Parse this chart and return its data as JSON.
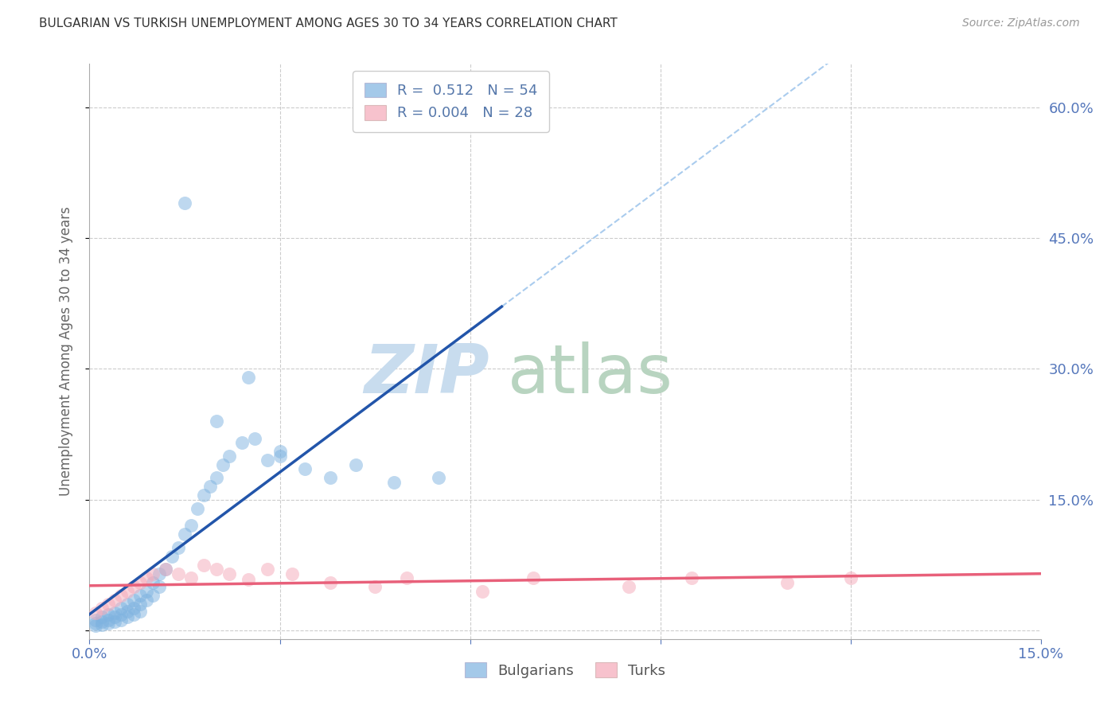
{
  "title": "BULGARIAN VS TURKISH UNEMPLOYMENT AMONG AGES 30 TO 34 YEARS CORRELATION CHART",
  "source": "Source: ZipAtlas.com",
  "ylabel_label": "Unemployment Among Ages 30 to 34 years",
  "xlim": [
    0.0,
    0.15
  ],
  "ylim": [
    -0.01,
    0.65
  ],
  "x_ticks": [
    0.0,
    0.03,
    0.06,
    0.09,
    0.12,
    0.15
  ],
  "x_tick_labels": [
    "0.0%",
    "",
    "",
    "",
    "",
    "15.0%"
  ],
  "y_ticks_right": [
    0.0,
    0.15,
    0.3,
    0.45,
    0.6
  ],
  "y_tick_labels_right": [
    "",
    "15.0%",
    "30.0%",
    "45.0%",
    "60.0%"
  ],
  "bulgarian_R": "0.512",
  "bulgarian_N": "54",
  "turkish_R": "0.004",
  "turkish_N": "28",
  "bulgarian_color": "#7EB3E0",
  "turkish_color": "#F4A8B8",
  "bulgarian_line_color": "#2255AA",
  "turkish_line_color": "#E8607A",
  "dashed_line_color": "#AACCEE",
  "legend_text_color": "#5577AA",
  "title_color": "#333333",
  "axis_color": "#5577BB",
  "watermark_zip_color": "#C8DCEE",
  "watermark_atlas_color": "#B8D4C0",
  "bg_scatter_x": [
    0.001,
    0.001,
    0.001,
    0.002,
    0.002,
    0.002,
    0.003,
    0.003,
    0.003,
    0.004,
    0.004,
    0.004,
    0.005,
    0.005,
    0.005,
    0.006,
    0.006,
    0.006,
    0.007,
    0.007,
    0.007,
    0.008,
    0.008,
    0.008,
    0.009,
    0.009,
    0.01,
    0.01,
    0.011,
    0.011,
    0.012,
    0.013,
    0.014,
    0.015,
    0.016,
    0.017,
    0.018,
    0.019,
    0.02,
    0.021,
    0.022,
    0.024,
    0.026,
    0.028,
    0.03,
    0.034,
    0.038,
    0.042,
    0.048,
    0.055,
    0.025,
    0.015,
    0.02,
    0.03
  ],
  "bg_scatter_y": [
    0.005,
    0.008,
    0.012,
    0.006,
    0.01,
    0.015,
    0.008,
    0.012,
    0.018,
    0.01,
    0.015,
    0.02,
    0.012,
    0.018,
    0.025,
    0.015,
    0.022,
    0.03,
    0.018,
    0.025,
    0.035,
    0.022,
    0.03,
    0.04,
    0.035,
    0.045,
    0.04,
    0.055,
    0.05,
    0.065,
    0.07,
    0.085,
    0.095,
    0.11,
    0.12,
    0.14,
    0.155,
    0.165,
    0.175,
    0.19,
    0.2,
    0.215,
    0.22,
    0.195,
    0.205,
    0.185,
    0.175,
    0.19,
    0.17,
    0.175,
    0.29,
    0.49,
    0.24,
    0.2
  ],
  "tk_scatter_x": [
    0.001,
    0.002,
    0.003,
    0.004,
    0.005,
    0.006,
    0.007,
    0.008,
    0.009,
    0.01,
    0.012,
    0.014,
    0.016,
    0.018,
    0.02,
    0.022,
    0.025,
    0.028,
    0.032,
    0.038,
    0.045,
    0.05,
    0.062,
    0.07,
    0.085,
    0.095,
    0.11,
    0.12
  ],
  "tk_scatter_y": [
    0.02,
    0.025,
    0.03,
    0.035,
    0.04,
    0.045,
    0.05,
    0.055,
    0.06,
    0.065,
    0.07,
    0.065,
    0.06,
    0.075,
    0.07,
    0.065,
    0.058,
    0.07,
    0.065,
    0.055,
    0.05,
    0.06,
    0.045,
    0.06,
    0.05,
    0.06,
    0.055,
    0.06
  ]
}
